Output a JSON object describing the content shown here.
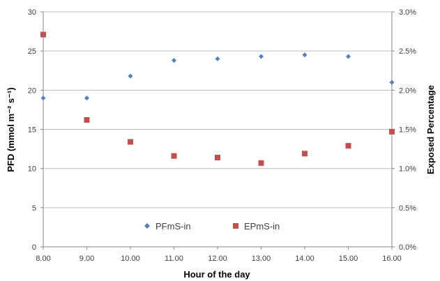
{
  "chart_data": {
    "type": "scatter",
    "title": "",
    "xlabel": "Hour of the day",
    "ylabel_left": "PFD (mmol m⁻² s⁻¹)",
    "ylabel_right": "Exposed Percentage",
    "x_ticks": [
      "8.00",
      "9.00",
      "10.00",
      "11.00",
      "12.00",
      "13.00",
      "14.00",
      "15.00",
      "16.00"
    ],
    "y_left_ticks": [
      "0",
      "5",
      "10",
      "15",
      "20",
      "25",
      "30"
    ],
    "y_right_ticks": [
      "0.0%",
      "0.5%",
      "1.0%",
      "1.5%",
      "2.0%",
      "2.5%",
      "3.0%"
    ],
    "xlim": [
      8,
      16
    ],
    "ylim_left": [
      0,
      30
    ],
    "ylim_right": [
      0,
      0.03
    ],
    "grid": "horizontal",
    "legend_position": "bottom-center",
    "series": [
      {
        "name": "PFmS-in",
        "axis": "left",
        "marker": "diamond",
        "color": "#4F81BD",
        "x": [
          8,
          9,
          10,
          11,
          12,
          13,
          14,
          15,
          16
        ],
        "y": [
          19.0,
          19.0,
          21.8,
          23.8,
          24.0,
          24.3,
          24.5,
          24.3,
          21.0
        ]
      },
      {
        "name": "EPmS-in",
        "axis": "right",
        "marker": "square",
        "color": "#C0504D",
        "x": [
          8,
          9,
          10,
          11,
          12,
          13,
          14,
          15,
          16
        ],
        "y": [
          0.0271,
          0.0162,
          0.0134,
          0.0116,
          0.0114,
          0.0107,
          0.0119,
          0.0129,
          0.0147
        ]
      }
    ]
  }
}
